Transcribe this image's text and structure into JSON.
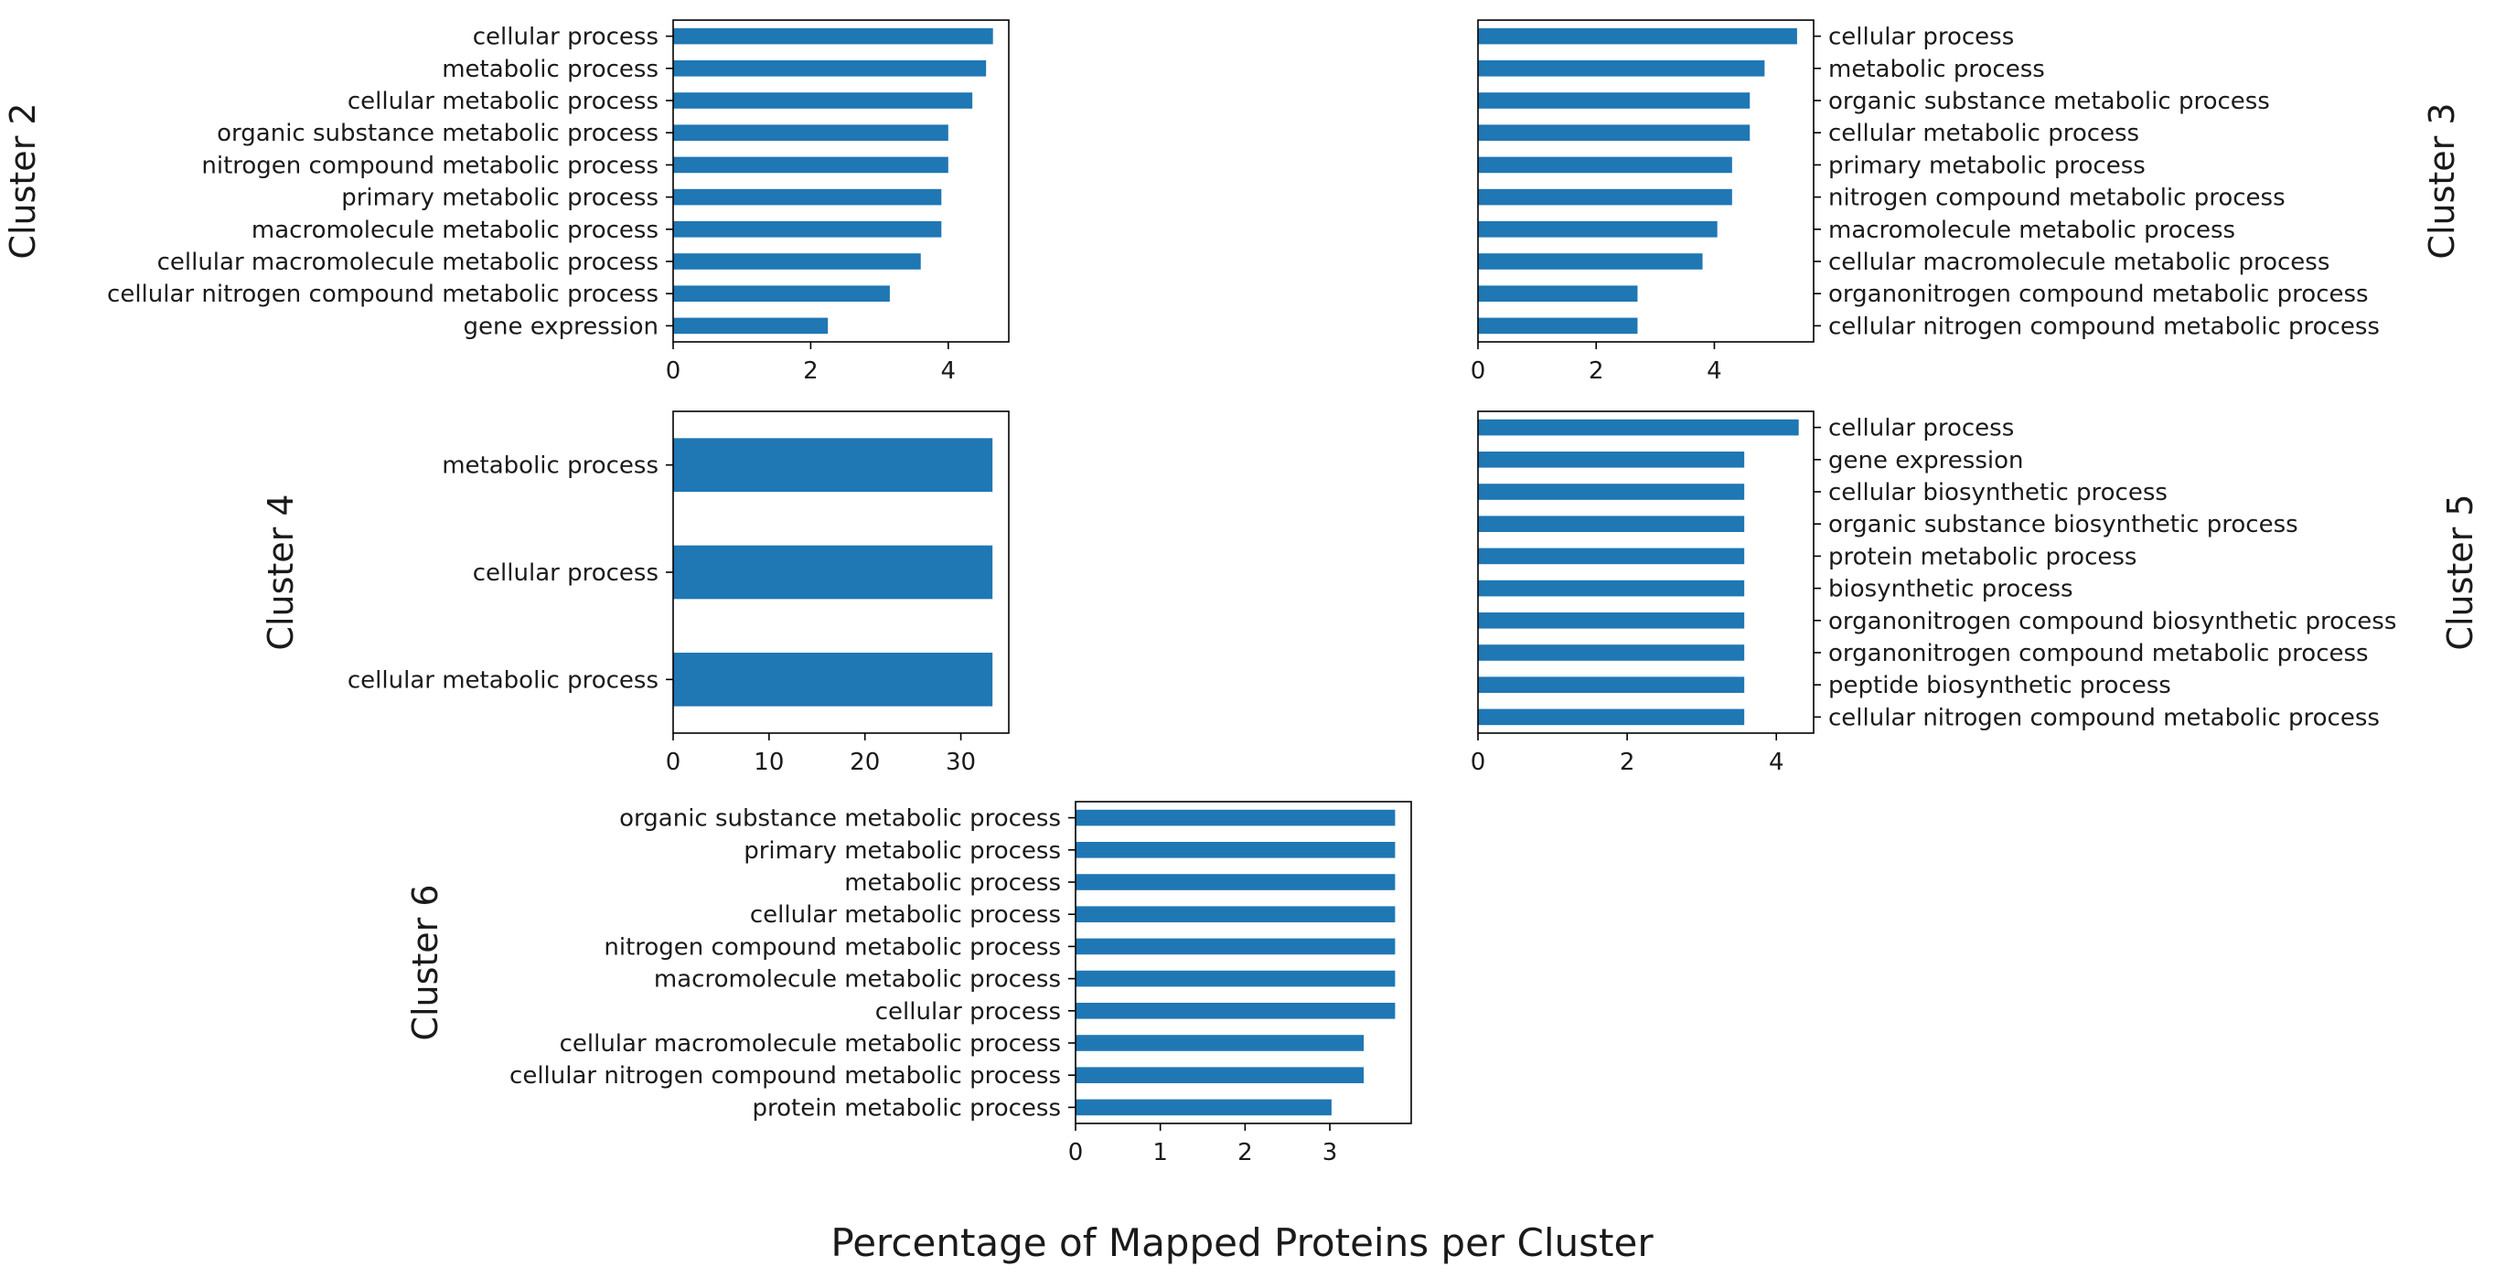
{
  "figure": {
    "xlabel": "Percentage of Mapped Proteins per Cluster",
    "bar_color": "#1f77b4"
  },
  "chart_data": [
    {
      "type": "bar",
      "orientation": "horizontal",
      "cluster_label": "Cluster 2",
      "ytick_side": "left",
      "categories": [
        "cellular process",
        "metabolic process",
        "cellular metabolic process",
        "organic substance metabolic process",
        "nitrogen compound metabolic process",
        "primary metabolic process",
        "macromolecule metabolic process",
        "cellular macromolecule metabolic process",
        "cellular nitrogen compound metabolic process",
        "gene expression"
      ],
      "values": [
        4.65,
        4.55,
        4.35,
        4.0,
        4.0,
        3.9,
        3.9,
        3.6,
        3.15,
        2.25
      ],
      "xlim": [
        0,
        4.88
      ],
      "xticks": [
        0,
        2,
        4
      ]
    },
    {
      "type": "bar",
      "orientation": "horizontal",
      "cluster_label": "Cluster 3",
      "ytick_side": "right",
      "categories": [
        "cellular process",
        "metabolic process",
        "organic substance metabolic process",
        "cellular metabolic process",
        "primary metabolic process",
        "nitrogen compound metabolic process",
        "macromolecule metabolic process",
        "cellular macromolecule metabolic process",
        "organonitrogen compound metabolic process",
        "cellular nitrogen compound metabolic process"
      ],
      "values": [
        5.4,
        4.85,
        4.6,
        4.6,
        4.3,
        4.3,
        4.05,
        3.8,
        2.7,
        2.7
      ],
      "xlim": [
        0,
        5.68
      ],
      "xticks": [
        0,
        2,
        4
      ]
    },
    {
      "type": "bar",
      "orientation": "horizontal",
      "cluster_label": "Cluster 4",
      "ytick_side": "left",
      "categories": [
        "metabolic process",
        "cellular process",
        "cellular metabolic process"
      ],
      "values": [
        33.3,
        33.3,
        33.3
      ],
      "xlim": [
        0,
        35
      ],
      "xticks": [
        0,
        10,
        20,
        30
      ]
    },
    {
      "type": "bar",
      "orientation": "horizontal",
      "cluster_label": "Cluster 5",
      "ytick_side": "right",
      "categories": [
        "cellular process",
        "gene expression",
        "cellular biosynthetic process",
        "organic substance biosynthetic process",
        "protein metabolic process",
        "biosynthetic process",
        "organonitrogen compound biosynthetic process",
        "organonitrogen compound metabolic process",
        "peptide biosynthetic process",
        "cellular nitrogen compound metabolic process"
      ],
      "values": [
        4.3,
        3.57,
        3.57,
        3.57,
        3.57,
        3.57,
        3.57,
        3.57,
        3.57,
        3.57
      ],
      "xlim": [
        0,
        4.5
      ],
      "xticks": [
        0,
        2,
        4
      ]
    },
    {
      "type": "bar",
      "orientation": "horizontal",
      "cluster_label": "Cluster 6",
      "ytick_side": "left",
      "categories": [
        "organic substance metabolic process",
        "primary metabolic process",
        "metabolic process",
        "cellular metabolic process",
        "nitrogen compound metabolic process",
        "macromolecule metabolic process",
        "cellular process",
        "cellular macromolecule metabolic process",
        "cellular nitrogen compound metabolic process",
        "protein metabolic process"
      ],
      "values": [
        3.77,
        3.77,
        3.77,
        3.77,
        3.77,
        3.77,
        3.77,
        3.4,
        3.4,
        3.02
      ],
      "xlim": [
        0,
        3.96
      ],
      "xticks": [
        0,
        1,
        2,
        3
      ]
    }
  ]
}
